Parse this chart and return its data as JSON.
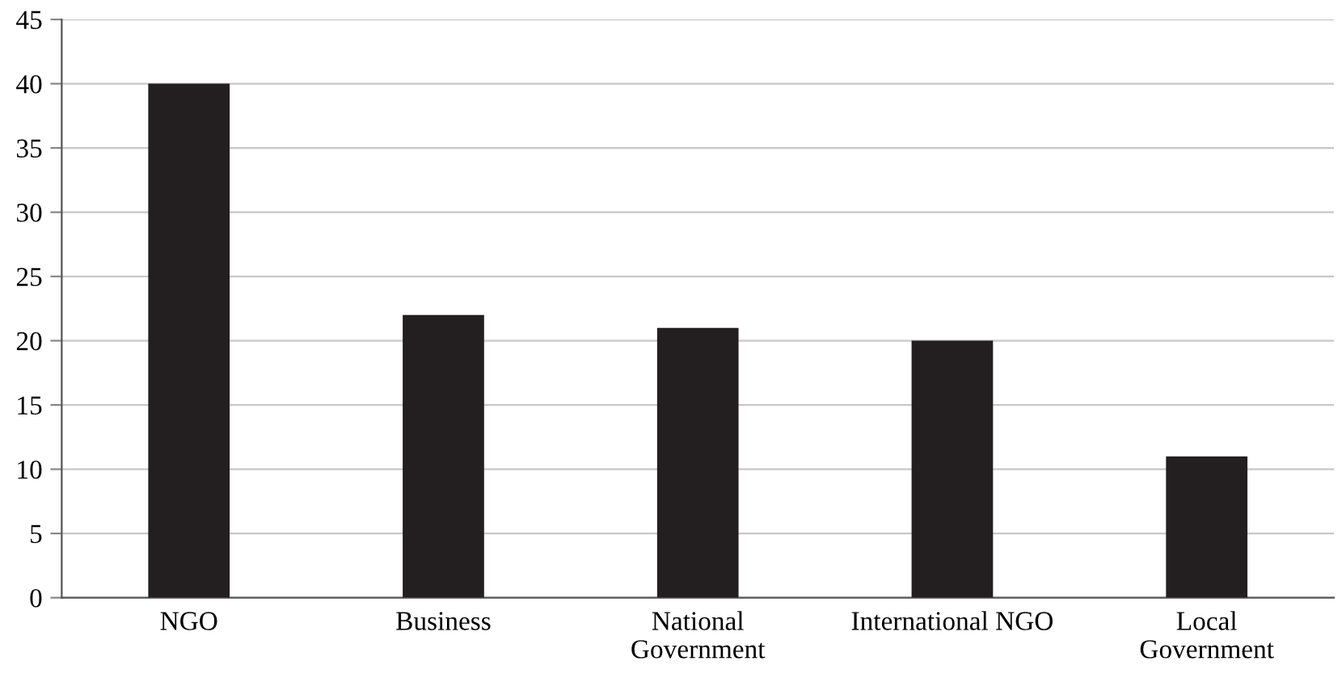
{
  "chart_data": {
    "type": "bar",
    "categories": [
      "NGO",
      "Business",
      "National\nGovernment",
      "International NGO",
      "Local\nGovernment"
    ],
    "values": [
      40,
      22,
      21,
      20,
      11
    ],
    "color": "#231f20",
    "ylim": [
      0,
      45
    ],
    "yticks": [
      0,
      5,
      10,
      15,
      20,
      25,
      30,
      35,
      40,
      45
    ],
    "grid": "y",
    "legend": false
  }
}
